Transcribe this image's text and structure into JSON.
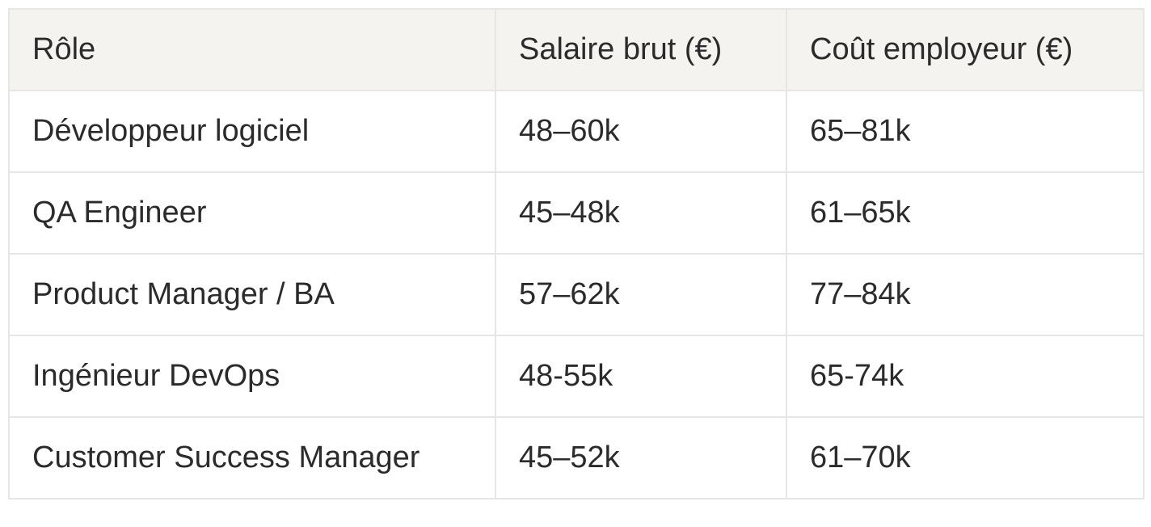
{
  "table": {
    "headers": [
      "Rôle",
      "Salaire brut (€)",
      "Coût employeur (€)"
    ],
    "rows": [
      [
        "Développeur logiciel",
        "48–60k",
        "65–81k"
      ],
      [
        "QA Engineer",
        "45–48k",
        "61–65k"
      ],
      [
        "Product Manager / BA",
        "57–62k",
        "77–84k"
      ],
      [
        "Ingénieur DevOps",
        "48-55k",
        "65-74k"
      ],
      [
        "Customer Success Manager",
        "45–52k",
        "61–70k"
      ]
    ]
  }
}
